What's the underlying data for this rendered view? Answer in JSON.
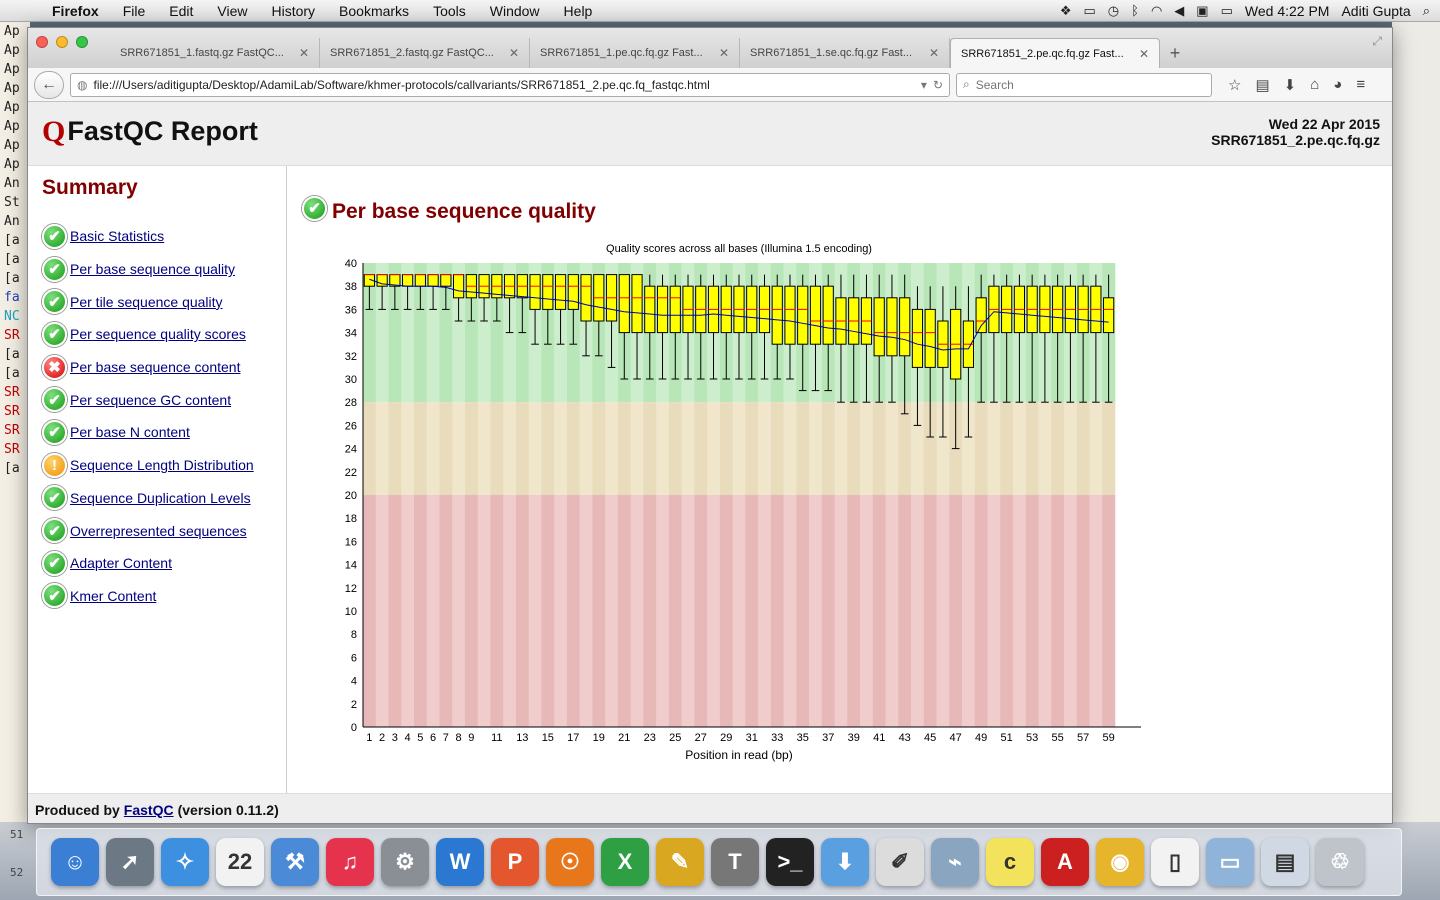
{
  "menubar": {
    "apple_icon": "apple-icon",
    "items": [
      "Firefox",
      "File",
      "Edit",
      "View",
      "History",
      "Bookmarks",
      "Tools",
      "Window",
      "Help"
    ],
    "clock": "Wed 4:22 PM",
    "user": "Aditi Gupta"
  },
  "background": {
    "terminal_lines": [
      "Ap",
      "Ap",
      "Ap",
      "Ap",
      "Ap",
      "Ap",
      "Ap",
      "Ap",
      "An",
      "St",
      "An",
      "[a",
      "[a",
      "[a",
      "fa",
      "NC",
      "SR",
      "[a",
      "[a",
      "SR",
      "SR",
      "SR",
      "SR",
      "[a"
    ],
    "line_numbers": [
      "51",
      "52"
    ]
  },
  "browser": {
    "tabs": [
      {
        "label": "SRR671851_1.fastq.gz FastQC..."
      },
      {
        "label": "SRR671851_2.fastq.gz FastQC..."
      },
      {
        "label": "SRR671851_1.pe.qc.fq.gz Fast..."
      },
      {
        "label": "SRR671851_1.se.qc.fq.gz Fast..."
      },
      {
        "label": "SRR671851_2.pe.qc.fq.gz Fast..."
      }
    ],
    "url": "file:///Users/aditigupta/Desktop/AdamiLab/Software/khmer-protocols/callvariants/SRR671851_2.pe.qc.fq_fastqc.html",
    "search_placeholder": "Search"
  },
  "report": {
    "title": "FastQC Report",
    "logo_mark": "Q",
    "date": "Wed 22 Apr 2015",
    "filename": "SRR671851_2.pe.qc.fq.gz",
    "summary_title": "Summary",
    "modules": [
      {
        "name": "Basic Statistics",
        "status": "pass"
      },
      {
        "name": "Per base sequence quality",
        "status": "pass"
      },
      {
        "name": "Per tile sequence quality",
        "status": "pass"
      },
      {
        "name": "Per sequence quality scores",
        "status": "pass"
      },
      {
        "name": "Per base sequence content",
        "status": "fail"
      },
      {
        "name": "Per sequence GC content",
        "status": "pass"
      },
      {
        "name": "Per base N content",
        "status": "pass"
      },
      {
        "name": "Sequence Length Distribution",
        "status": "warn"
      },
      {
        "name": "Sequence Duplication Levels",
        "status": "pass"
      },
      {
        "name": "Overrepresented sequences",
        "status": "pass"
      },
      {
        "name": "Adapter Content",
        "status": "pass"
      },
      {
        "name": "Kmer Content",
        "status": "pass"
      }
    ],
    "section_title": "Per base sequence quality",
    "footer_prefix": "Produced by",
    "footer_link": "FastQC",
    "footer_suffix": "(version 0.11.2)"
  },
  "chart_data": {
    "type": "box",
    "title": "Quality scores across all bases (Illumina 1.5 encoding)",
    "xlabel": "Position in read (bp)",
    "ylabel": "",
    "ylim": [
      0,
      40
    ],
    "yticks": [
      0,
      2,
      4,
      6,
      8,
      10,
      12,
      14,
      16,
      18,
      20,
      22,
      24,
      26,
      28,
      30,
      32,
      34,
      36,
      38,
      40
    ],
    "xtick_labels": [
      "1",
      "2",
      "3",
      "4",
      "5",
      "6",
      "7",
      "8",
      "9",
      "11",
      "13",
      "15",
      "17",
      "19",
      "21",
      "23",
      "25",
      "27",
      "29",
      "31",
      "33",
      "35",
      "37",
      "39",
      "41",
      "43",
      "45",
      "47",
      "49",
      "51",
      "53",
      "55",
      "57",
      "59"
    ],
    "zones": [
      {
        "from": 28,
        "to": 40,
        "color": "#b8e6b8",
        "alt": "#cdeecd"
      },
      {
        "from": 20,
        "to": 28,
        "color": "#e8dcbc",
        "alt": "#f0e6cc"
      },
      {
        "from": 0,
        "to": 20,
        "color": "#e6b8b8",
        "alt": "#f0cccc"
      }
    ],
    "box_color": "#ffff00",
    "median_color": "#ff0000",
    "mean_color": "#0000aa",
    "boxes": [
      {
        "whisker_low": 36,
        "q1": 38,
        "median": 39,
        "q3": 39,
        "whisker_high": 39,
        "mean": 38.6
      },
      {
        "whisker_low": 36,
        "q1": 38,
        "median": 39,
        "q3": 39,
        "whisker_high": 39,
        "mean": 38.2
      },
      {
        "whisker_low": 36,
        "q1": 38,
        "median": 39,
        "q3": 39,
        "whisker_high": 39,
        "mean": 38.1
      },
      {
        "whisker_low": 36,
        "q1": 38,
        "median": 39,
        "q3": 39,
        "whisker_high": 39,
        "mean": 38.0
      },
      {
        "whisker_low": 36,
        "q1": 38,
        "median": 39,
        "q3": 39,
        "whisker_high": 39,
        "mean": 38.0
      },
      {
        "whisker_low": 36,
        "q1": 38,
        "median": 39,
        "q3": 39,
        "whisker_high": 39,
        "mean": 38.0
      },
      {
        "whisker_low": 36,
        "q1": 38,
        "median": 39,
        "q3": 39,
        "whisker_high": 39,
        "mean": 37.9
      },
      {
        "whisker_low": 35,
        "q1": 37,
        "median": 39,
        "q3": 39,
        "whisker_high": 39,
        "mean": 37.6
      },
      {
        "whisker_low": 35,
        "q1": 37,
        "median": 38,
        "q3": 39,
        "whisker_high": 39,
        "mean": 37.5
      },
      {
        "whisker_low": 35,
        "q1": 37,
        "median": 38,
        "q3": 39,
        "whisker_high": 39,
        "mean": 37.4
      },
      {
        "whisker_low": 35,
        "q1": 37,
        "median": 38,
        "q3": 39,
        "whisker_high": 39,
        "mean": 37.3
      },
      {
        "whisker_low": 34,
        "q1": 37,
        "median": 38,
        "q3": 39,
        "whisker_high": 39,
        "mean": 37.2
      },
      {
        "whisker_low": 34,
        "q1": 37,
        "median": 38,
        "q3": 39,
        "whisker_high": 39,
        "mean": 37.1
      },
      {
        "whisker_low": 33,
        "q1": 36,
        "median": 38,
        "q3": 39,
        "whisker_high": 39,
        "mean": 37.0
      },
      {
        "whisker_low": 33,
        "q1": 36,
        "median": 38,
        "q3": 39,
        "whisker_high": 39,
        "mean": 36.9
      },
      {
        "whisker_low": 33,
        "q1": 36,
        "median": 38,
        "q3": 39,
        "whisker_high": 39,
        "mean": 36.8
      },
      {
        "whisker_low": 33,
        "q1": 36,
        "median": 38,
        "q3": 39,
        "whisker_high": 39,
        "mean": 36.7
      },
      {
        "whisker_low": 32,
        "q1": 35,
        "median": 38,
        "q3": 39,
        "whisker_high": 39,
        "mean": 36.4
      },
      {
        "whisker_low": 32,
        "q1": 35,
        "median": 37,
        "q3": 39,
        "whisker_high": 39,
        "mean": 36.2
      },
      {
        "whisker_low": 31,
        "q1": 35,
        "median": 37,
        "q3": 39,
        "whisker_high": 39,
        "mean": 36.0
      },
      {
        "whisker_low": 30,
        "q1": 34,
        "median": 37,
        "q3": 39,
        "whisker_high": 39,
        "mean": 35.8
      },
      {
        "whisker_low": 30,
        "q1": 34,
        "median": 37,
        "q3": 39,
        "whisker_high": 39,
        "mean": 35.7
      },
      {
        "whisker_low": 30,
        "q1": 34,
        "median": 37,
        "q3": 38,
        "whisker_high": 39,
        "mean": 35.6
      },
      {
        "whisker_low": 30,
        "q1": 34,
        "median": 37,
        "q3": 38,
        "whisker_high": 39,
        "mean": 35.5
      },
      {
        "whisker_low": 30,
        "q1": 34,
        "median": 37,
        "q3": 38,
        "whisker_high": 39,
        "mean": 35.5
      },
      {
        "whisker_low": 30,
        "q1": 34,
        "median": 36,
        "q3": 38,
        "whisker_high": 39,
        "mean": 35.5
      },
      {
        "whisker_low": 30,
        "q1": 34,
        "median": 36,
        "q3": 38,
        "whisker_high": 39,
        "mean": 35.5
      },
      {
        "whisker_low": 30,
        "q1": 34,
        "median": 36,
        "q3": 38,
        "whisker_high": 39,
        "mean": 35.6
      },
      {
        "whisker_low": 30,
        "q1": 34,
        "median": 36,
        "q3": 38,
        "whisker_high": 39,
        "mean": 35.5
      },
      {
        "whisker_low": 30,
        "q1": 34,
        "median": 36,
        "q3": 38,
        "whisker_high": 39,
        "mean": 35.4
      },
      {
        "whisker_low": 30,
        "q1": 34,
        "median": 36,
        "q3": 38,
        "whisker_high": 39,
        "mean": 35.3
      },
      {
        "whisker_low": 30,
        "q1": 34,
        "median": 36,
        "q3": 38,
        "whisker_high": 39,
        "mean": 35.2
      },
      {
        "whisker_low": 30,
        "q1": 33,
        "median": 36,
        "q3": 38,
        "whisker_high": 39,
        "mean": 35.1
      },
      {
        "whisker_low": 30,
        "q1": 33,
        "median": 36,
        "q3": 38,
        "whisker_high": 39,
        "mean": 35.0
      },
      {
        "whisker_low": 29,
        "q1": 33,
        "median": 36,
        "q3": 38,
        "whisker_high": 39,
        "mean": 34.8
      },
      {
        "whisker_low": 29,
        "q1": 33,
        "median": 35,
        "q3": 38,
        "whisker_high": 39,
        "mean": 34.6
      },
      {
        "whisker_low": 29,
        "q1": 33,
        "median": 35,
        "q3": 38,
        "whisker_high": 39,
        "mean": 34.4
      },
      {
        "whisker_low": 28,
        "q1": 33,
        "median": 35,
        "q3": 37,
        "whisker_high": 39,
        "mean": 34.3
      },
      {
        "whisker_low": 28,
        "q1": 33,
        "median": 35,
        "q3": 37,
        "whisker_high": 39,
        "mean": 34.1
      },
      {
        "whisker_low": 28,
        "q1": 33,
        "median": 35,
        "q3": 37,
        "whisker_high": 39,
        "mean": 33.9
      },
      {
        "whisker_low": 28,
        "q1": 32,
        "median": 34,
        "q3": 37,
        "whisker_high": 39,
        "mean": 33.7
      },
      {
        "whisker_low": 28,
        "q1": 32,
        "median": 34,
        "q3": 37,
        "whisker_high": 39,
        "mean": 33.6
      },
      {
        "whisker_low": 27,
        "q1": 32,
        "median": 34,
        "q3": 37,
        "whisker_high": 39,
        "mean": 33.4
      },
      {
        "whisker_low": 26,
        "q1": 31,
        "median": 34,
        "q3": 36,
        "whisker_high": 38,
        "mean": 33.0
      },
      {
        "whisker_low": 25,
        "q1": 31,
        "median": 34,
        "q3": 36,
        "whisker_high": 38,
        "mean": 32.8
      },
      {
        "whisker_low": 25,
        "q1": 31,
        "median": 33,
        "q3": 35,
        "whisker_high": 38,
        "mean": 32.5
      },
      {
        "whisker_low": 24,
        "q1": 30,
        "median": 33,
        "q3": 36,
        "whisker_high": 38,
        "mean": 32.6
      },
      {
        "whisker_low": 25,
        "q1": 31,
        "median": 33,
        "q3": 35,
        "whisker_high": 38,
        "mean": 32.6
      },
      {
        "whisker_low": 28,
        "q1": 34,
        "median": 35,
        "q3": 37,
        "whisker_high": 39,
        "mean": 34.6
      },
      {
        "whisker_low": 28,
        "q1": 34,
        "median": 36,
        "q3": 38,
        "whisker_high": 39,
        "mean": 35.8
      },
      {
        "whisker_low": 28,
        "q1": 34,
        "median": 36,
        "q3": 38,
        "whisker_high": 39,
        "mean": 35.7
      },
      {
        "whisker_low": 28,
        "q1": 34,
        "median": 36,
        "q3": 38,
        "whisker_high": 39,
        "mean": 35.6
      },
      {
        "whisker_low": 28,
        "q1": 34,
        "median": 36,
        "q3": 38,
        "whisker_high": 39,
        "mean": 35.5
      },
      {
        "whisker_low": 28,
        "q1": 34,
        "median": 36,
        "q3": 38,
        "whisker_high": 39,
        "mean": 35.4
      },
      {
        "whisker_low": 28,
        "q1": 34,
        "median": 36,
        "q3": 38,
        "whisker_high": 39,
        "mean": 35.3
      },
      {
        "whisker_low": 28,
        "q1": 34,
        "median": 36,
        "q3": 38,
        "whisker_high": 39,
        "mean": 35.2
      },
      {
        "whisker_low": 28,
        "q1": 34,
        "median": 36,
        "q3": 38,
        "whisker_high": 39,
        "mean": 35.1
      },
      {
        "whisker_low": 28,
        "q1": 34,
        "median": 36,
        "q3": 38,
        "whisker_high": 39,
        "mean": 35.0
      },
      {
        "whisker_low": 28,
        "q1": 34,
        "median": 36,
        "q3": 37,
        "whisker_high": 39,
        "mean": 34.9
      }
    ]
  },
  "dock": {
    "apps": [
      {
        "name": "finder-icon",
        "color": "#3b7fd4",
        "glyph": "☺"
      },
      {
        "name": "launchpad-icon",
        "color": "#6d7885",
        "glyph": "➚"
      },
      {
        "name": "safari-icon",
        "color": "#3d8fe0",
        "glyph": "✧"
      },
      {
        "name": "calendar-icon",
        "color": "#f2f2f2",
        "glyph": "22"
      },
      {
        "name": "xcode-icon",
        "color": "#4a8ad6",
        "glyph": "⚒"
      },
      {
        "name": "itunes-icon",
        "color": "#e6334d",
        "glyph": "♫"
      },
      {
        "name": "system-preferences-icon",
        "color": "#8a8f96",
        "glyph": "⚙"
      },
      {
        "name": "word-icon",
        "color": "#2b78d2",
        "glyph": "W"
      },
      {
        "name": "powerpoint-icon",
        "color": "#e4572e",
        "glyph": "P"
      },
      {
        "name": "firefox-icon",
        "color": "#e8761b",
        "glyph": "☉"
      },
      {
        "name": "excel-icon",
        "color": "#2ea043",
        "glyph": "X"
      },
      {
        "name": "textwrangler-icon",
        "color": "#d9a720",
        "glyph": "✎"
      },
      {
        "name": "latex-icon",
        "color": "#777777",
        "glyph": "T"
      },
      {
        "name": "terminal-icon",
        "color": "#222222",
        "glyph": ">_"
      },
      {
        "name": "downloader-icon",
        "color": "#5aa0e0",
        "glyph": "⬇"
      },
      {
        "name": "textedit-icon",
        "color": "#dcdcdc",
        "glyph": "✐"
      },
      {
        "name": "network-icon",
        "color": "#8aa5c0",
        "glyph": "⌁"
      },
      {
        "name": "citeulike-icon",
        "color": "#f2e25c",
        "glyph": "c"
      },
      {
        "name": "acrobat-icon",
        "color": "#cc1f1f",
        "glyph": "A"
      },
      {
        "name": "chrome-icon",
        "color": "#e7b52b",
        "glyph": "◉"
      },
      {
        "name": "document-icon",
        "color": "#f2f2f2",
        "glyph": "▯"
      },
      {
        "name": "folder-icon",
        "color": "#8fb3d9",
        "glyph": "▭"
      },
      {
        "name": "preview-icon",
        "color": "#cfd8e3",
        "glyph": "▤"
      },
      {
        "name": "trash-icon",
        "color": "#bfc4ca",
        "glyph": "♲"
      }
    ]
  }
}
